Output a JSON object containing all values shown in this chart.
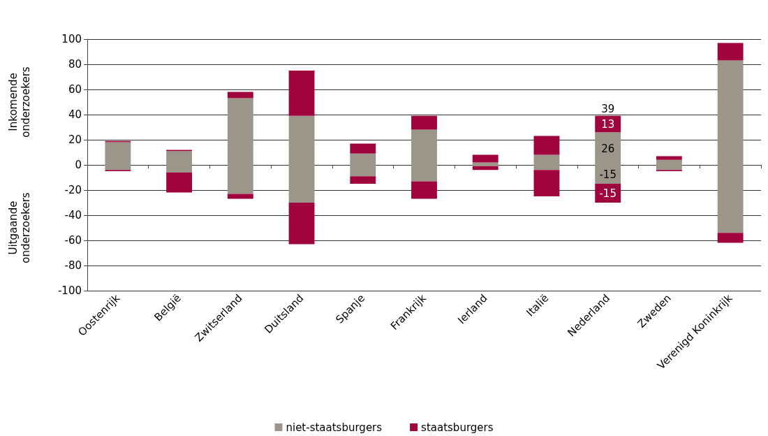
{
  "chart_data": {
    "type": "bar",
    "stacked": true,
    "categories": [
      "Oostenrijk",
      "België",
      "Zwitserland",
      "Duitsland",
      "Spanje",
      "Frankrijk",
      "Ierland",
      "Italië",
      "Nederland",
      "Zweden",
      "Verenigd Koninkrijk"
    ],
    "ylabel": "Inkomende onderzoekers",
    "annotations": [
      "Uitgaande onderzoekers",
      {
        "text": "39",
        "x": "Nederland",
        "y": 39
      }
    ],
    "series": [
      {
        "name": "niet-staatsburgers",
        "color": "#9c9589",
        "values": [
          18,
          11,
          53,
          39,
          9,
          28,
          2,
          8,
          26,
          4,
          83
        ],
        "value_labels": [
          null,
          null,
          null,
          null,
          null,
          null,
          null,
          null,
          "26",
          null,
          null
        ]
      },
      {
        "name": "staatsburgers",
        "color": "#a0043c",
        "values": [
          1,
          1,
          5,
          36,
          8,
          11,
          6,
          15,
          13,
          3,
          14
        ],
        "value_labels": [
          null,
          null,
          null,
          null,
          null,
          null,
          null,
          null,
          "13",
          null,
          null
        ]
      },
      {
        "color": "#9c9589",
        "values": [
          -4,
          -6,
          -23,
          -30,
          -9,
          -13,
          -1,
          -4,
          -15,
          -4,
          -54
        ],
        "value_labels": [
          null,
          null,
          null,
          null,
          null,
          null,
          null,
          null,
          "-15",
          null,
          null
        ]
      },
      {
        "color": "#a0043c",
        "values": [
          -1,
          -16,
          -4,
          -33,
          -6,
          -14,
          -3,
          -21,
          -15,
          -1,
          -8
        ],
        "value_labels": [
          null,
          null,
          null,
          null,
          null,
          null,
          null,
          null,
          "-15",
          null,
          null
        ]
      }
    ],
    "ylim": [
      -100,
      100
    ],
    "yticks": [
      -100,
      -80,
      -60,
      -40,
      -20,
      0,
      20,
      40,
      60,
      80,
      100
    ],
    "grid": "y",
    "legend": "bottom"
  }
}
